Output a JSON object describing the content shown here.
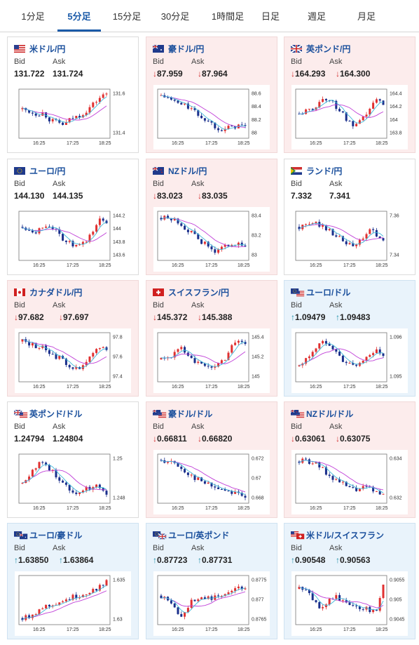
{
  "tabs": [
    "1分足",
    "5分足",
    "15分足",
    "30分足",
    "1時間足",
    "日足",
    "週足",
    "月足"
  ],
  "active_tab": 1,
  "labels": {
    "bid": "Bid",
    "ask": "Ask"
  },
  "colors": {
    "up": "#e03030",
    "down": "#1a2f8c",
    "ma_long": "#c040d8",
    "ma_short": "#40b8d8",
    "accent": "#1a5aa8"
  },
  "cards": [
    {
      "name": "米ドル/円",
      "flag": "us",
      "bid": "131.722",
      "ask": "131.724",
      "dir": "",
      "bg": "white",
      "yticks": [
        "131.6",
        "131.4"
      ],
      "xticks": [
        "16:25",
        "17:25",
        "18:25"
      ],
      "shape": [
        0.6,
        0.55,
        0.5,
        0.52,
        0.35,
        0.3,
        0.25,
        0.4,
        0.45,
        0.55,
        0.7,
        0.85,
        0.95
      ]
    },
    {
      "name": "豪ドル/円",
      "flag": "au",
      "bid": "87.959",
      "ask": "87.964",
      "dir": "down",
      "bg": "pink",
      "yticks": [
        "88.6",
        "88.4",
        "88.2",
        "88"
      ],
      "xticks": [
        "16:25",
        "17:25",
        "18:25"
      ],
      "shape": [
        0.9,
        0.85,
        0.75,
        0.7,
        0.65,
        0.5,
        0.4,
        0.3,
        0.2,
        0.15,
        0.2,
        0.25,
        0.2
      ]
    },
    {
      "name": "英ポンド/円",
      "flag": "gb",
      "bid": "164.293",
      "ask": "164.300",
      "dir": "down",
      "bg": "pink",
      "yticks": [
        "164.4",
        "164.2",
        "164",
        "163.8"
      ],
      "xticks": [
        "16:25",
        "17:25",
        "18:25"
      ],
      "shape": [
        0.5,
        0.55,
        0.6,
        0.8,
        0.85,
        0.7,
        0.55,
        0.3,
        0.2,
        0.35,
        0.6,
        0.8,
        0.75
      ]
    },
    {
      "name": "ユーロ/円",
      "flag": "eu",
      "bid": "144.130",
      "ask": "144.135",
      "dir": "",
      "bg": "white",
      "yticks": [
        "144.2",
        "144",
        "143.8",
        "143.6"
      ],
      "xticks": [
        "16:25",
        "17:25",
        "18:25"
      ],
      "shape": [
        0.7,
        0.65,
        0.6,
        0.72,
        0.75,
        0.55,
        0.4,
        0.3,
        0.25,
        0.35,
        0.6,
        0.85,
        0.8
      ]
    },
    {
      "name": "NZドル/円",
      "flag": "nz",
      "bid": "83.023",
      "ask": "83.035",
      "dir": "down",
      "bg": "pink",
      "yticks": [
        "83.4",
        "83.2",
        "83"
      ],
      "xticks": [
        "16:25",
        "17:25",
        "18:25"
      ],
      "shape": [
        0.9,
        0.88,
        0.85,
        0.75,
        0.6,
        0.45,
        0.35,
        0.2,
        0.15,
        0.25,
        0.35,
        0.3,
        0.25
      ]
    },
    {
      "name": "ランド/円",
      "flag": "za",
      "bid": "7.332",
      "ask": "7.341",
      "dir": "",
      "bg": "white",
      "yticks": [
        "7.36",
        "7.34"
      ],
      "xticks": [
        "16:25",
        "17:25",
        "18:25"
      ],
      "shape": [
        0.7,
        0.72,
        0.8,
        0.75,
        0.65,
        0.55,
        0.4,
        0.3,
        0.25,
        0.45,
        0.6,
        0.55,
        0.35
      ]
    },
    {
      "name": "カナダドル/円",
      "flag": "ca",
      "bid": "97.682",
      "ask": "97.697",
      "dir": "down",
      "bg": "pink",
      "yticks": [
        "97.8",
        "97.6",
        "97.4"
      ],
      "xticks": [
        "16:25",
        "17:25",
        "18:25"
      ],
      "shape": [
        0.85,
        0.8,
        0.75,
        0.7,
        0.6,
        0.5,
        0.4,
        0.3,
        0.2,
        0.35,
        0.55,
        0.75,
        0.7
      ]
    },
    {
      "name": "スイスフラン/円",
      "flag": "ch",
      "bid": "145.372",
      "ask": "145.388",
      "dir": "down",
      "bg": "pink",
      "yticks": [
        "145.4",
        "145.2",
        "145"
      ],
      "xticks": [
        "16:25",
        "17:25",
        "18:25"
      ],
      "shape": [
        0.45,
        0.5,
        0.6,
        0.7,
        0.55,
        0.4,
        0.3,
        0.25,
        0.35,
        0.45,
        0.75,
        0.9,
        0.8
      ]
    },
    {
      "name": "ユーロ/ドル",
      "flag": "euus",
      "bid": "1.09479",
      "ask": "1.09483",
      "dir": "up",
      "bg": "blue",
      "yticks": [
        "1.096",
        "1.095"
      ],
      "xticks": [
        "16:25",
        "17:25",
        "18:25"
      ],
      "shape": [
        0.3,
        0.45,
        0.65,
        0.8,
        0.85,
        0.7,
        0.45,
        0.35,
        0.3,
        0.4,
        0.55,
        0.7,
        0.5
      ]
    },
    {
      "name": "英ポンド/ドル",
      "flag": "gbus",
      "bid": "1.24794",
      "ask": "1.24804",
      "dir": "",
      "bg": "white",
      "yticks": [
        "1.25",
        "1.248"
      ],
      "xticks": [
        "16:25",
        "17:25",
        "18:25"
      ],
      "shape": [
        0.4,
        0.6,
        0.8,
        0.85,
        0.7,
        0.55,
        0.35,
        0.25,
        0.2,
        0.25,
        0.35,
        0.3,
        0.2
      ]
    },
    {
      "name": "豪ドル/ドル",
      "flag": "auus",
      "bid": "0.66811",
      "ask": "0.66820",
      "dir": "down",
      "bg": "pink",
      "yticks": [
        "0.672",
        "0.67",
        "0.668"
      ],
      "xticks": [
        "16:25",
        "17:25",
        "18:25"
      ],
      "shape": [
        0.92,
        0.88,
        0.82,
        0.7,
        0.6,
        0.5,
        0.42,
        0.35,
        0.3,
        0.25,
        0.22,
        0.18,
        0.1
      ]
    },
    {
      "name": "NZドル/ドル",
      "flag": "nzus",
      "bid": "0.63061",
      "ask": "0.63075",
      "dir": "down",
      "bg": "pink",
      "yticks": [
        "0.634",
        "0.632"
      ],
      "xticks": [
        "16:25",
        "17:25",
        "18:25"
      ],
      "shape": [
        0.88,
        0.9,
        0.85,
        0.75,
        0.6,
        0.5,
        0.4,
        0.3,
        0.25,
        0.3,
        0.28,
        0.2,
        0.15
      ]
    },
    {
      "name": "ユーロ/豪ドル",
      "flag": "euau",
      "bid": "1.63850",
      "ask": "1.63864",
      "dir": "up",
      "bg": "blue",
      "yticks": [
        "1.635",
        "1.63"
      ],
      "xticks": [
        "16:25",
        "17:25",
        "18:25"
      ],
      "shape": [
        0.1,
        0.15,
        0.25,
        0.35,
        0.4,
        0.45,
        0.5,
        0.55,
        0.6,
        0.65,
        0.72,
        0.8,
        0.9
      ]
    },
    {
      "name": "ユーロ/英ポンド",
      "flag": "eugb",
      "bid": "0.87723",
      "ask": "0.87731",
      "dir": "up",
      "bg": "blue",
      "yticks": [
        "0.8775",
        "0.877",
        "0.8765"
      ],
      "xticks": [
        "16:25",
        "17:25",
        "18:25"
      ],
      "shape": [
        0.6,
        0.5,
        0.3,
        0.15,
        0.4,
        0.55,
        0.6,
        0.5,
        0.65,
        0.6,
        0.7,
        0.75,
        0.8
      ]
    },
    {
      "name": "米ドル/スイスフラン",
      "flag": "usch",
      "bid": "0.90548",
      "ask": "0.90563",
      "dir": "up",
      "bg": "blue",
      "yticks": [
        "0.9055",
        "0.905",
        "0.9045"
      ],
      "xticks": [
        "16:25",
        "17:25",
        "18:25"
      ],
      "shape": [
        0.75,
        0.7,
        0.5,
        0.35,
        0.45,
        0.6,
        0.5,
        0.4,
        0.3,
        0.35,
        0.25,
        0.3,
        0.85
      ]
    }
  ]
}
